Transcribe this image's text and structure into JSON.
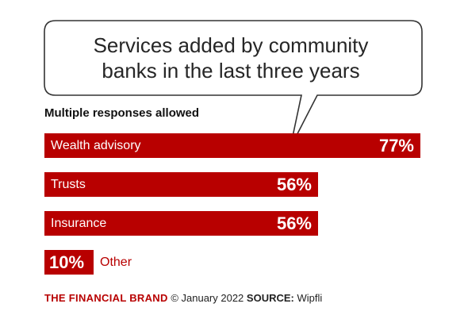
{
  "chart_data": {
    "type": "bar",
    "orientation": "horizontal",
    "title_lines": [
      "Services added by community",
      "banks in the last three years"
    ],
    "subtitle": "Multiple responses allowed",
    "categories": [
      "Wealth advisory",
      "Trusts",
      "Insurance",
      "Other"
    ],
    "values": [
      77,
      56,
      56,
      10
    ],
    "value_labels": [
      "77%",
      "56%",
      "56%",
      "10%"
    ],
    "unit": "%",
    "xlim": [
      0,
      100
    ],
    "grid": false,
    "legend": "none",
    "colors": {
      "bar": "#b80000",
      "bar_text": "#ffffff",
      "outside_text": "#b80000"
    }
  },
  "footer": {
    "brand": "THE FINANCIAL BRAND",
    "date": "© January 2022",
    "source_label": "SOURCE:",
    "source": "Wipfli"
  }
}
